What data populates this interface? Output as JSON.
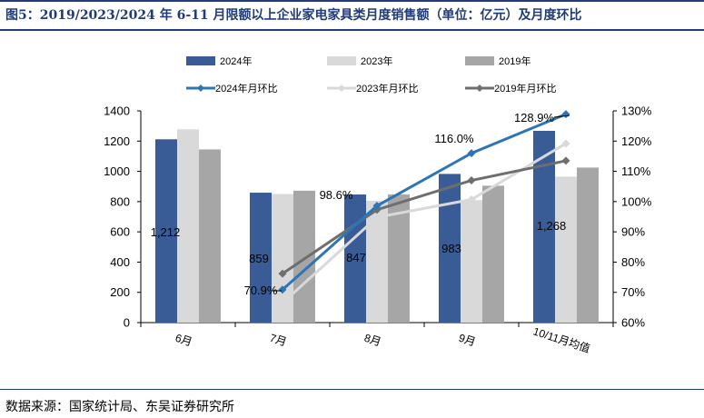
{
  "header": {
    "title": "图5：2019/2023/2024 年 6-11 月限额以上企业家电家具类月度销售额（单位：亿元）及月度环比"
  },
  "footer": {
    "source": "数据来源：国家统计局、东吴证券研究所"
  },
  "colors": {
    "rule": "#1f3b78",
    "title": "#1f3b78",
    "bar_2024": "#3a5c96",
    "bar_2023": "#d9d9d9",
    "bar_2019": "#a6a6a6",
    "line_2024": "#2e75b6",
    "line_2023": "#d9d9d9",
    "line_2019": "#6e6e6e"
  },
  "chart_data": {
    "type": "bar",
    "title": "",
    "categories": [
      "6月",
      "7月",
      "8月",
      "9月",
      "10/11月均值"
    ],
    "series": [
      {
        "name": "2024年",
        "type": "bar",
        "axis": "left",
        "values": [
          1212,
          859,
          847,
          983,
          1268
        ]
      },
      {
        "name": "2023年",
        "type": "bar",
        "axis": "left",
        "values": [
          1278,
          850,
          805,
          810,
          965
        ]
      },
      {
        "name": "2019年",
        "type": "bar",
        "axis": "left",
        "values": [
          1145,
          872,
          848,
          905,
          1025
        ]
      },
      {
        "name": "2024年月环比",
        "type": "line",
        "axis": "right",
        "values": [
          null,
          70.9,
          98.6,
          116.0,
          128.9
        ]
      },
      {
        "name": "2023年月环比",
        "type": "line",
        "axis": "right",
        "values": [
          null,
          66.5,
          94.8,
          100.7,
          119.2
        ]
      },
      {
        "name": "2019年月环比",
        "type": "line",
        "axis": "right",
        "values": [
          null,
          76.2,
          97.3,
          107.0,
          113.5
        ]
      }
    ],
    "data_labels": [
      {
        "text": "1,212",
        "category": 0
      },
      {
        "text": "859",
        "category": 1
      },
      {
        "text": "847",
        "category": 2
      },
      {
        "text": "983",
        "category": 3
      },
      {
        "text": "1,268",
        "category": 4
      },
      {
        "text": "70.9%",
        "category": 1
      },
      {
        "text": "98.6%",
        "category": 2
      },
      {
        "text": "116.0%",
        "category": 3
      },
      {
        "text": "128.9%",
        "category": 4
      }
    ],
    "y_left": {
      "min": 0,
      "max": 1400,
      "ticks": [
        "0",
        "200",
        "400",
        "600",
        "800",
        "1000",
        "1200",
        "1400"
      ]
    },
    "y_right": {
      "min": 60,
      "max": 130,
      "ticks": [
        "60%",
        "70%",
        "80%",
        "90%",
        "100%",
        "110%",
        "120%",
        "130%"
      ]
    },
    "grid": false,
    "legend_position": "top"
  }
}
